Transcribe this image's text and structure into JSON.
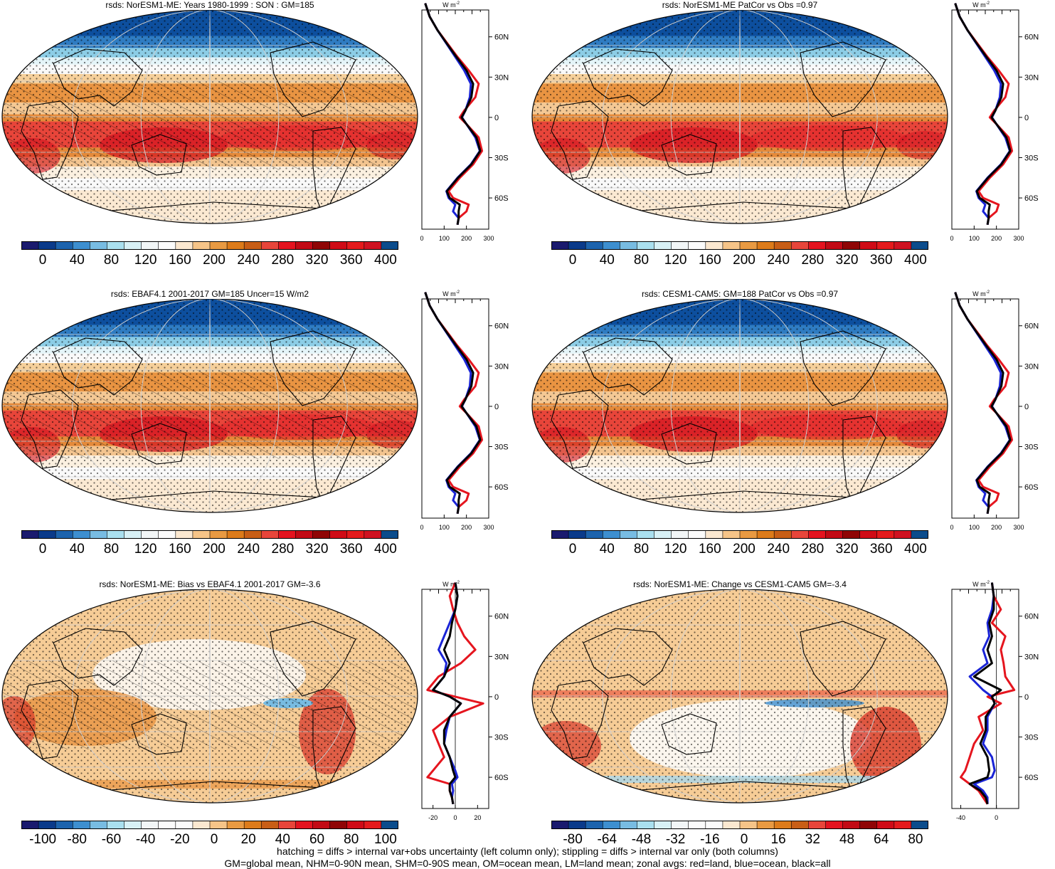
{
  "panels": [
    {
      "id": "p1",
      "title": "rsds: NorESM1-ME: Years 1980-1999 : SON : GM=185",
      "kind": "clim",
      "hatch": true,
      "cbar_labels": [
        "0",
        "40",
        "80",
        "120",
        "160",
        "200",
        "240",
        "280",
        "320",
        "360",
        "400"
      ],
      "zonal_xticks": [
        "0",
        "100",
        "200",
        "300"
      ],
      "zonal_xrange": [
        0,
        300
      ]
    },
    {
      "id": "p2",
      "title": "rsds: NorESM1-ME PatCor vs Obs =0.97",
      "kind": "clim",
      "hatch": false,
      "cbar_labels": [
        "0",
        "40",
        "80",
        "120",
        "160",
        "200",
        "240",
        "280",
        "320",
        "360",
        "400"
      ],
      "zonal_xticks": [
        "0",
        "100",
        "200",
        "300"
      ],
      "zonal_xrange": [
        0,
        300
      ]
    },
    {
      "id": "p3",
      "title": "rsds: EBAF4.1 2001-2017 GM=185 Uncer=15 W/m2",
      "kind": "clim",
      "hatch": true,
      "cbar_labels": [
        "0",
        "40",
        "80",
        "120",
        "160",
        "200",
        "240",
        "280",
        "320",
        "360",
        "400"
      ],
      "zonal_xticks": [
        "0",
        "100",
        "200",
        "300"
      ],
      "zonal_xrange": [
        0,
        300
      ]
    },
    {
      "id": "p4",
      "title": "rsds: CESM1-CAM5: GM=188 PatCor vs Obs =0.97",
      "kind": "clim",
      "hatch": false,
      "cbar_labels": [
        "0",
        "40",
        "80",
        "120",
        "160",
        "200",
        "240",
        "280",
        "320",
        "360",
        "400"
      ],
      "zonal_xticks": [
        "0",
        "100",
        "200",
        "300"
      ],
      "zonal_xrange": [
        0,
        300
      ]
    },
    {
      "id": "p5",
      "title": "rsds: NorESM1-ME: Bias vs EBAF4.1 2001-2017  GM=-3.6",
      "kind": "bias",
      "hatch": true,
      "cbar_labels": [
        "-100",
        "-80",
        "-60",
        "-40",
        "-20",
        "0",
        "20",
        "40",
        "60",
        "80",
        "100"
      ],
      "zonal_xticks": [
        "-20",
        "0",
        "20"
      ],
      "zonal_xrange": [
        -30,
        30
      ]
    },
    {
      "id": "p6",
      "title": "rsds: NorESM1-ME: Change vs CESM1-CAM5 GM=-3.4",
      "kind": "change",
      "hatch": false,
      "cbar_labels": [
        "-80",
        "-64",
        "-48",
        "-32",
        "-16",
        "0",
        "16",
        "32",
        "48",
        "64",
        "80"
      ],
      "zonal_xticks": [
        "-40",
        "0"
      ],
      "zonal_xrange": [
        -50,
        25
      ]
    }
  ],
  "zonal_units": "W m",
  "zonal_units_sup": "-2",
  "lat_labels": [
    "60N",
    "30N",
    "0",
    "30S",
    "60S"
  ],
  "colors": {
    "clim_scale": [
      "#1a1a6e",
      "#0a3a8a",
      "#1c63ad",
      "#3d8fd0",
      "#78bce2",
      "#aae0ef",
      "#d8f1f6",
      "#f2f6f7",
      "#fbfbfb",
      "#fbe8d0",
      "#f6c488",
      "#e99a42",
      "#dd7b1a",
      "#c85e16",
      "#e8453a",
      "#e4131f",
      "#c20a15",
      "#8f0505",
      "#cf0b16",
      "#e41a1c",
      "#cf1221",
      "#0b4c8c"
    ],
    "bias_scale": [
      "#1a1a6e",
      "#0a3a8a",
      "#1c63ad",
      "#3d8fd0",
      "#78bce2",
      "#aae0ef",
      "#d8f1f6",
      "#f2f6f7",
      "#fbfbfb",
      "#fbfbfb",
      "#fbe8d0",
      "#f6c488",
      "#e99a42",
      "#dd7b1a",
      "#c85e16",
      "#e8453a",
      "#e4131f",
      "#c20a15",
      "#8f0505",
      "#cf0b16",
      "#e41a1c",
      "#0b4c8c"
    ],
    "land_line": "#e5151e",
    "ocean_line": "#1a24d6",
    "all_line": "#000000"
  },
  "caption_line1": "hatching = diffs > internal var+obs uncertainty (left column only); stippling = diffs > internal var only (both columns)",
  "caption_line2": "GM=global mean, NHM=0-90N mean, SHM=0-90S mean, OM=ocean mean, LM=land mean; zonal avgs: red=land, blue=ocean, black=all",
  "zonal_series": {
    "lat": [
      85,
      75,
      65,
      55,
      45,
      35,
      25,
      15,
      5,
      0,
      -5,
      -15,
      -25,
      -35,
      -45,
      -55,
      -60,
      -65,
      -70,
      -75,
      -80
    ],
    "clim_land": [
      15,
      35,
      70,
      115,
      160,
      210,
      255,
      240,
      190,
      170,
      200,
      255,
      270,
      230,
      170,
      120,
      140,
      210,
      200,
      165,
      160
    ],
    "clim_ocean": [
      15,
      35,
      70,
      110,
      150,
      190,
      220,
      215,
      195,
      180,
      200,
      240,
      260,
      220,
      160,
      110,
      120,
      150,
      140,
      165,
      160
    ],
    "clim_all": [
      15,
      35,
      70,
      112,
      155,
      200,
      230,
      222,
      195,
      178,
      200,
      245,
      262,
      222,
      162,
      112,
      125,
      170,
      165,
      165,
      160
    ],
    "bias_land": [
      0,
      -5,
      -2,
      2,
      8,
      18,
      5,
      -15,
      -25,
      0,
      25,
      -5,
      -20,
      -15,
      -10,
      -20,
      -25,
      -5,
      -5,
      -3,
      -2
    ],
    "bias_ocean": [
      0,
      2,
      0,
      -5,
      -10,
      -15,
      -8,
      -10,
      -20,
      -5,
      5,
      -5,
      -8,
      -10,
      -5,
      0,
      2,
      -3,
      -2,
      -3,
      -2
    ],
    "bias_all": [
      0,
      2,
      0,
      -3,
      -5,
      -10,
      -5,
      -10,
      -20,
      -5,
      5,
      -5,
      -10,
      -10,
      -5,
      -2,
      0,
      -5,
      -5,
      -3,
      -2
    ],
    "chg_land": [
      -5,
      -3,
      5,
      -5,
      10,
      5,
      8,
      10,
      20,
      -10,
      5,
      -20,
      -15,
      -25,
      -30,
      -35,
      -40,
      -30,
      -20,
      -15,
      -10
    ],
    "chg_ocean": [
      -5,
      -3,
      -5,
      -10,
      -8,
      -15,
      -10,
      -30,
      -15,
      -5,
      -2,
      -10,
      -10,
      -15,
      -5,
      -2,
      -5,
      -25,
      -15,
      -10,
      -10
    ],
    "chg_all": [
      -5,
      -3,
      -3,
      -8,
      -5,
      -10,
      -5,
      -25,
      5,
      -5,
      -2,
      -12,
      -12,
      -18,
      -10,
      -8,
      -10,
      -30,
      -18,
      -12,
      -10
    ]
  }
}
